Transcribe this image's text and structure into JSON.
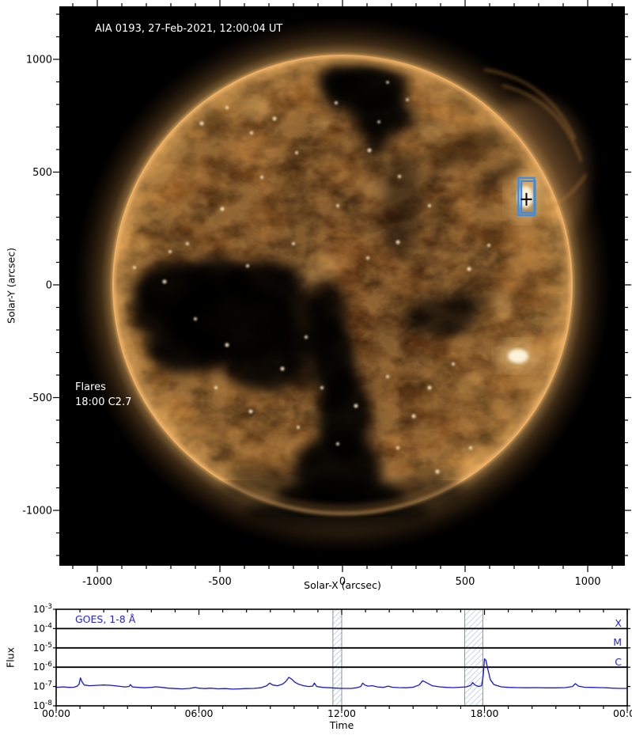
{
  "chart_data": [
    {
      "type": "image",
      "title": "AIA 0193, 27-Feb-2021, 12:00:04 UT",
      "xlabel": "Solar-X (arcsec)",
      "ylabel": "Solar-Y (arcsec)",
      "xlim": [
        -1153,
        1153
      ],
      "ylim": [
        -1243,
        1237
      ],
      "x_ticks": [
        -1000,
        -500,
        0,
        500,
        1000
      ],
      "y_ticks": [
        1000,
        500,
        0,
        -500,
        -1000
      ],
      "minor_tick_step": 100,
      "major_tick_step": 500,
      "annotations": {
        "flares_title": "Flares",
        "flares_entry": "18:00 C2.7"
      },
      "flare_marker": {
        "solar_x": 750,
        "solar_y": 390,
        "color": "#3d8de2"
      }
    },
    {
      "type": "line",
      "label": "GOES, 1-8 Å",
      "xlabel": "Time",
      "ylabel": "Flux",
      "x_ticks": [
        "00:00",
        "06:00",
        "12:00",
        "18:00",
        "00:00"
      ],
      "x_tick_hours": [
        0,
        6,
        12,
        18,
        24
      ],
      "x_minor_step_hours": 1,
      "y_tick_exponents": [
        -3,
        -4,
        -5,
        -6,
        -7,
        -8
      ],
      "ylim": [
        0.001,
        1e-08
      ],
      "legend_position": "top-left",
      "grid": false,
      "flare_class_lines": [
        {
          "label": "X",
          "level": 0.0001
        },
        {
          "label": "M",
          "level": 1e-05
        },
        {
          "label": "C",
          "level": 1e-06
        }
      ],
      "hatch_bands": [
        {
          "start_hour": 11.63,
          "end_hour": 12.0
        },
        {
          "start_hour": 17.17,
          "end_hour": 17.93
        }
      ],
      "colors": {
        "line": "#1818cf",
        "label": "#2424d6",
        "hatch": "#a9c5dd",
        "band_border": "#909090"
      },
      "series": [
        {
          "name": "GOES 1-8 Å flux",
          "points": [
            [
              0.0,
              9e-08
            ],
            [
              0.3,
              9.5e-08
            ],
            [
              0.55,
              9e-08
            ],
            [
              0.75,
              9.2e-08
            ],
            [
              0.88,
              1.05e-07
            ],
            [
              0.96,
              1.3e-07
            ],
            [
              1.02,
              2.8e-07
            ],
            [
              1.08,
              1.8e-07
            ],
            [
              1.18,
              1.2e-07
            ],
            [
              1.4,
              1.1e-07
            ],
            [
              1.7,
              1.15e-07
            ],
            [
              2.0,
              1.2e-07
            ],
            [
              2.3,
              1.15e-07
            ],
            [
              2.6,
              1.05e-07
            ],
            [
              2.9,
              9.5e-08
            ],
            [
              3.06,
              1e-07
            ],
            [
              3.12,
              1.25e-07
            ],
            [
              3.2,
              9.5e-08
            ],
            [
              3.45,
              9e-08
            ],
            [
              3.7,
              8.6e-08
            ],
            [
              4.0,
              9e-08
            ],
            [
              4.2,
              9.6e-08
            ],
            [
              4.45,
              9e-08
            ],
            [
              4.7,
              8.2e-08
            ],
            [
              5.0,
              7.8e-08
            ],
            [
              5.3,
              7.5e-08
            ],
            [
              5.6,
              8e-08
            ],
            [
              5.85,
              9e-08
            ],
            [
              6.0,
              8.2e-08
            ],
            [
              6.25,
              7.8e-08
            ],
            [
              6.5,
              8.2e-08
            ],
            [
              6.8,
              7.6e-08
            ],
            [
              7.1,
              7.8e-08
            ],
            [
              7.4,
              7.3e-08
            ],
            [
              7.7,
              7.5e-08
            ],
            [
              8.0,
              7.8e-08
            ],
            [
              8.3,
              8e-08
            ],
            [
              8.6,
              8.6e-08
            ],
            [
              8.85,
              1.1e-07
            ],
            [
              8.98,
              1.5e-07
            ],
            [
              9.1,
              1.2e-07
            ],
            [
              9.3,
              1.1e-07
            ],
            [
              9.5,
              1.3e-07
            ],
            [
              9.65,
              1.8e-07
            ],
            [
              9.78,
              3e-07
            ],
            [
              9.9,
              2.4e-07
            ],
            [
              10.05,
              1.6e-07
            ],
            [
              10.2,
              1.3e-07
            ],
            [
              10.4,
              1.1e-07
            ],
            [
              10.6,
              1e-07
            ],
            [
              10.78,
              1.05e-07
            ],
            [
              10.85,
              1.5e-07
            ],
            [
              10.95,
              1e-07
            ],
            [
              11.2,
              9e-08
            ],
            [
              11.5,
              8.6e-08
            ],
            [
              11.8,
              8.2e-08
            ],
            [
              12.1,
              8e-08
            ],
            [
              12.4,
              8e-08
            ],
            [
              12.62,
              8.6e-08
            ],
            [
              12.8,
              1e-07
            ],
            [
              12.88,
              1.5e-07
            ],
            [
              12.97,
              1.2e-07
            ],
            [
              13.1,
              1.05e-07
            ],
            [
              13.3,
              1.1e-07
            ],
            [
              13.5,
              9.5e-08
            ],
            [
              13.75,
              9e-08
            ],
            [
              13.95,
              1.05e-07
            ],
            [
              14.12,
              9.2e-08
            ],
            [
              14.4,
              8.8e-08
            ],
            [
              14.7,
              8.6e-08
            ],
            [
              15.0,
              9.2e-08
            ],
            [
              15.25,
              1.2e-07
            ],
            [
              15.4,
              2e-07
            ],
            [
              15.55,
              1.6e-07
            ],
            [
              15.8,
              1.1e-07
            ],
            [
              16.1,
              9.6e-08
            ],
            [
              16.4,
              9e-08
            ],
            [
              16.7,
              8.8e-08
            ],
            [
              17.0,
              9.2e-08
            ],
            [
              17.25,
              9.6e-08
            ],
            [
              17.42,
              1.15e-07
            ],
            [
              17.5,
              1.6e-07
            ],
            [
              17.6,
              1.2e-07
            ],
            [
              17.75,
              1e-07
            ],
            [
              17.88,
              1.1e-07
            ],
            [
              17.95,
              4e-07
            ],
            [
              18.0,
              2.7e-06
            ],
            [
              18.06,
              2.3e-06
            ],
            [
              18.14,
              8e-07
            ],
            [
              18.25,
              2.2e-07
            ],
            [
              18.4,
              1.25e-07
            ],
            [
              18.7,
              9.6e-08
            ],
            [
              19.0,
              9e-08
            ],
            [
              19.4,
              8.8e-08
            ],
            [
              19.8,
              8.6e-08
            ],
            [
              20.2,
              8.8e-08
            ],
            [
              20.6,
              8.5e-08
            ],
            [
              21.0,
              8.5e-08
            ],
            [
              21.4,
              8.8e-08
            ],
            [
              21.7,
              1e-07
            ],
            [
              21.82,
              1.4e-07
            ],
            [
              21.95,
              1.05e-07
            ],
            [
              22.2,
              9.2e-08
            ],
            [
              22.5,
              9e-08
            ],
            [
              22.8,
              8.8e-08
            ],
            [
              23.1,
              8.6e-08
            ],
            [
              23.4,
              8.2e-08
            ],
            [
              23.7,
              8e-08
            ],
            [
              24.0,
              8e-08
            ]
          ]
        }
      ]
    }
  ]
}
